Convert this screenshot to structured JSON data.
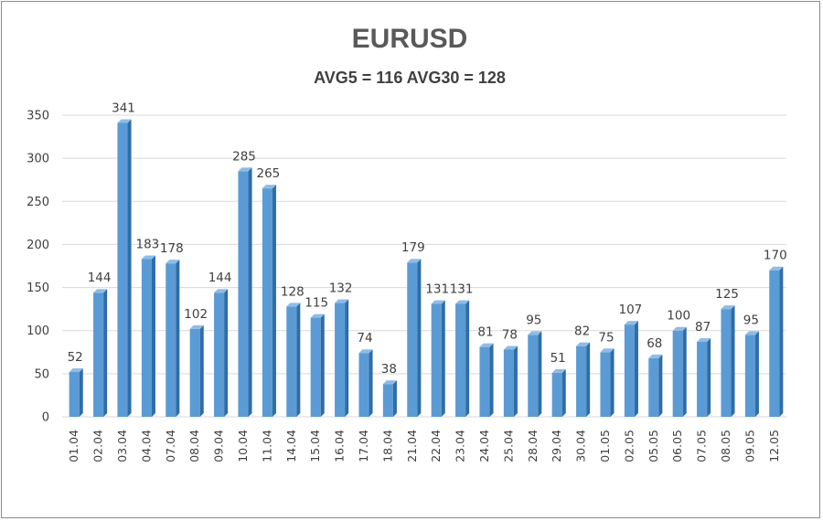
{
  "colors": {
    "bar_front": "#5b9bd5",
    "bar_side": "#2f6da6",
    "bar_top": "#8fbce6",
    "grid": "#d9d9d9",
    "text": "#404040"
  },
  "chart_data": {
    "type": "bar",
    "title": "EURUSD",
    "subtitle": "AVG5 = 116 AVG30 = 128",
    "xlabel": "",
    "ylabel": "",
    "ylim": [
      0,
      350
    ],
    "yticks": [
      0,
      50,
      100,
      150,
      200,
      250,
      300,
      350
    ],
    "grid": true,
    "categories": [
      "01.04",
      "02.04",
      "03.04",
      "04.04",
      "07.04",
      "08.04",
      "09.04",
      "10.04",
      "11.04",
      "14.04",
      "15.04",
      "16.04",
      "17.04",
      "18.04",
      "21.04",
      "22.04",
      "23.04",
      "24.04",
      "25.04",
      "28.04",
      "29.04",
      "30.04",
      "01.05",
      "02.05",
      "05.05",
      "06.05",
      "07.05",
      "08.05",
      "09.05",
      "12.05"
    ],
    "values": [
      52,
      144,
      341,
      183,
      178,
      102,
      144,
      285,
      265,
      128,
      115,
      132,
      74,
      38,
      179,
      131,
      131,
      81,
      78,
      95,
      51,
      82,
      75,
      107,
      68,
      100,
      87,
      125,
      95,
      170
    ]
  }
}
